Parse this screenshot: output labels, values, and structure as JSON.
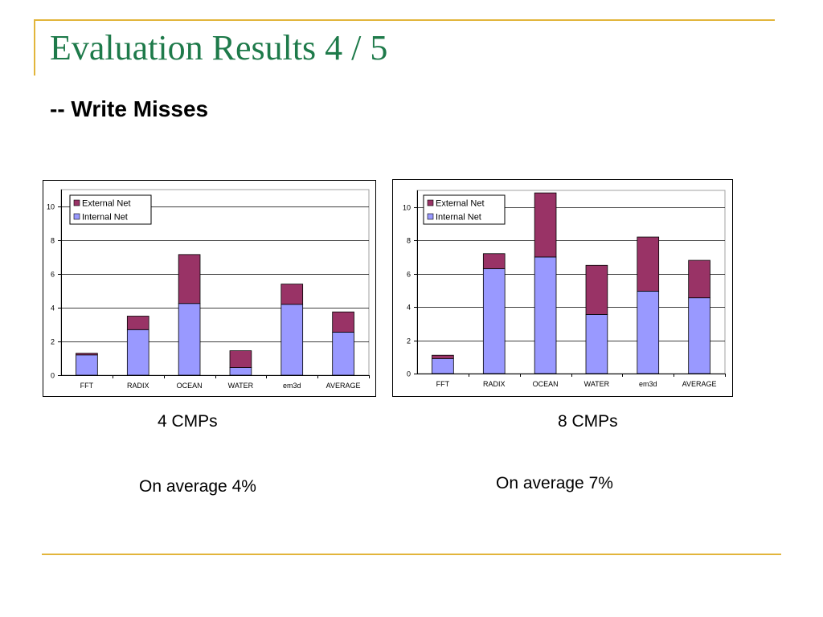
{
  "slide": {
    "title": "Evaluation Results 4 / 5",
    "subtitle": "-- Write Misses",
    "captions": [
      "4 CMPs",
      "8 CMPs"
    ],
    "averages": [
      "On average 4%",
      "On average 7%"
    ]
  },
  "colors": {
    "accent_rule": "#e2b53b",
    "title": "#1e7a4a",
    "internal_net": "#9999ff",
    "external_net": "#993366"
  },
  "chart_data": [
    {
      "type": "bar",
      "stacked": true,
      "categories": [
        "FFT",
        "RADIX",
        "OCEAN",
        "WATER",
        "em3d",
        "AVERAGE"
      ],
      "series": [
        {
          "name": "Internal Net",
          "values": [
            1.2,
            2.7,
            4.25,
            0.45,
            4.2,
            2.55
          ]
        },
        {
          "name": "External Net",
          "values": [
            0.1,
            0.8,
            2.9,
            1.0,
            1.2,
            1.2
          ]
        }
      ],
      "yticks": [
        0,
        2,
        4,
        6,
        8,
        10
      ],
      "ylim": [
        0,
        11
      ],
      "grid": true,
      "legend_position": "top-left",
      "legend_order": [
        "External Net",
        "Internal Net"
      ]
    },
    {
      "type": "bar",
      "stacked": true,
      "categories": [
        "FFT",
        "RADIX",
        "OCEAN",
        "WATER",
        "em3d",
        "AVERAGE"
      ],
      "series": [
        {
          "name": "Internal Net",
          "values": [
            0.9,
            6.3,
            7.0,
            3.55,
            4.95,
            4.55
          ]
        },
        {
          "name": "External Net",
          "values": [
            0.2,
            0.9,
            3.85,
            2.95,
            3.25,
            2.25
          ]
        }
      ],
      "yticks": [
        0,
        2,
        4,
        6,
        8,
        10
      ],
      "ylim": [
        0,
        11
      ],
      "grid": true,
      "legend_position": "top-left",
      "legend_order": [
        "External Net",
        "Internal Net"
      ]
    }
  ]
}
